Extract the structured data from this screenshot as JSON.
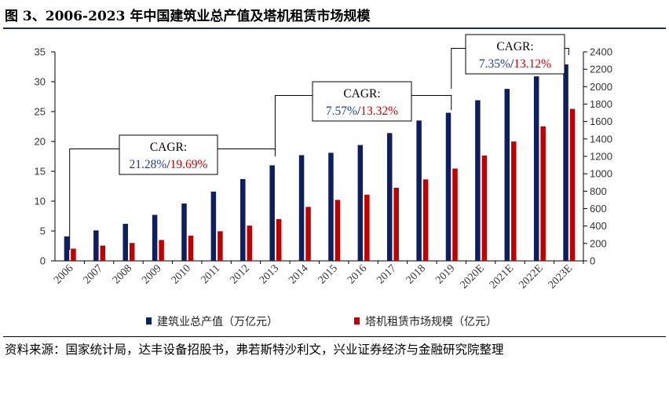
{
  "figure": {
    "title": "图 3、2006-2023 年中国建筑业总产值及塔机租赁市场规模",
    "source": "资料来源：国家统计局，达丰设备招股书，弗若斯特沙利文，兴业证券经济与金融研究院整理"
  },
  "colors": {
    "series1": "#0d1f5c",
    "series2": "#c00000",
    "cagr1": "#1f3f8f",
    "cagr2": "#cc0000"
  },
  "chart_data": {
    "type": "bar",
    "categories": [
      "2006",
      "2007",
      "2008",
      "2009",
      "2010",
      "2011",
      "2012",
      "2013",
      "2014",
      "2015",
      "2016",
      "2017",
      "2018",
      "2019",
      "2020E",
      "2021E",
      "2022E",
      "2023E"
    ],
    "series": [
      {
        "name": "建筑业总产值（万亿元）",
        "axis": "left",
        "values": [
          4.1,
          5.1,
          6.2,
          7.7,
          9.6,
          11.6,
          13.7,
          16.0,
          17.7,
          18.1,
          19.4,
          21.4,
          23.5,
          24.8,
          26.9,
          28.8,
          30.9,
          32.9
        ]
      },
      {
        "name": "塔机租赁市场规模（亿元）",
        "axis": "right",
        "values": [
          140,
          175,
          205,
          240,
          290,
          340,
          405,
          480,
          620,
          700,
          760,
          840,
          935,
          1060,
          1210,
          1370,
          1545,
          1745
        ]
      }
    ],
    "y_left": {
      "ylim": [
        0,
        35
      ],
      "ticks": [
        "0",
        "5",
        "10",
        "15",
        "20",
        "25",
        "30",
        "35"
      ]
    },
    "y_right": {
      "ylim": [
        0,
        2400
      ],
      "ticks": [
        "0",
        "200",
        "400",
        "600",
        "800",
        "1000",
        "1200",
        "1400",
        "1600",
        "1800",
        "2000",
        "2200",
        "2400"
      ]
    },
    "grid": false,
    "legend_position": "bottom",
    "annotations": [
      {
        "label": "CAGR:",
        "value1": "21.28%",
        "sep": "/",
        "value2": "19.69%",
        "from": "2006",
        "to": "2013"
      },
      {
        "label": "CAGR:",
        "value1": "7.57%",
        "sep": "/",
        "value2": "13.32%",
        "from": "2013",
        "to": "2019"
      },
      {
        "label": "CAGR:",
        "value1": "7.35%",
        "sep": "/",
        "value2": "13.12%",
        "from": "2019",
        "to": "2023E"
      }
    ]
  }
}
